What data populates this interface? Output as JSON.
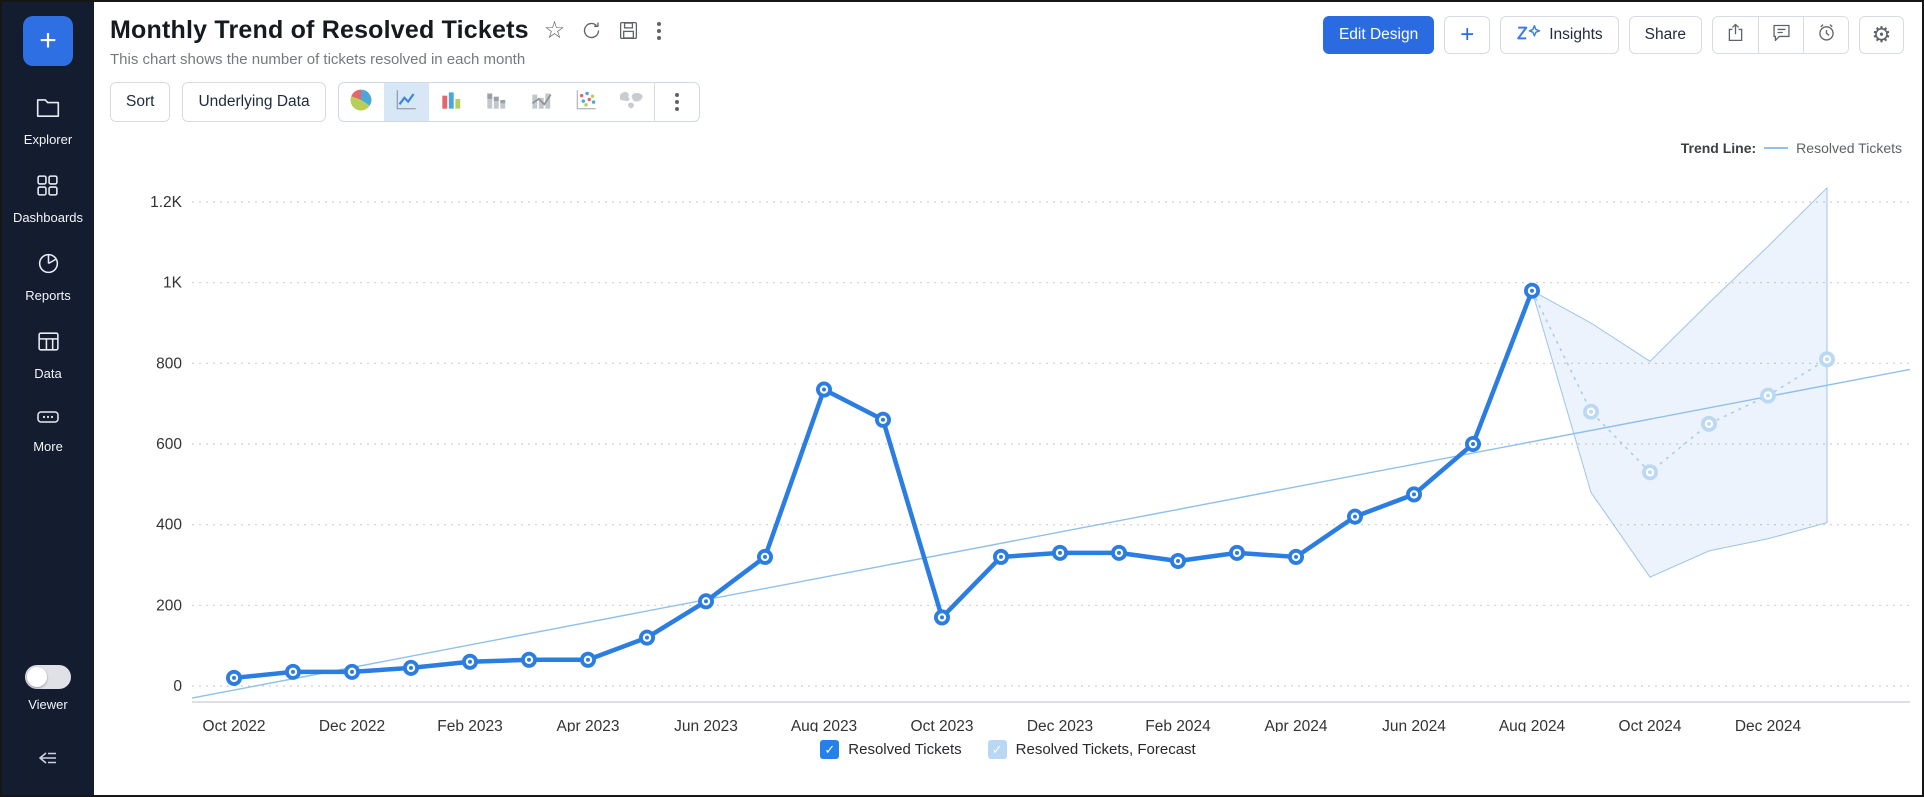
{
  "sidebar": {
    "plus_label": "+",
    "items": [
      {
        "label": "Explorer"
      },
      {
        "label": "Dashboards"
      },
      {
        "label": "Reports"
      },
      {
        "label": "Data"
      },
      {
        "label": "More"
      }
    ],
    "viewer_label": "Viewer"
  },
  "header": {
    "title": "Monthly Trend of Resolved Tickets",
    "subtitle": "This chart shows the number of tickets resolved in each month",
    "actions": {
      "edit_design": "Edit Design",
      "plus": "+",
      "insights": "Insights",
      "share": "Share"
    }
  },
  "toolbar": {
    "sort": "Sort",
    "underlying_data": "Underlying Data"
  },
  "chart_data": {
    "type": "line",
    "title": "Monthly Trend of Resolved Tickets",
    "ylim": [
      0,
      1200
    ],
    "y_tick_values": [
      0,
      200,
      400,
      600,
      800,
      1000,
      1200
    ],
    "y_tick_labels": [
      "0",
      "200",
      "400",
      "600",
      "800",
      "1K",
      "1.2K"
    ],
    "x_tick_labels": [
      "Oct 2022",
      "Dec 2022",
      "Feb 2023",
      "Apr 2023",
      "Jun 2023",
      "Aug 2023",
      "Oct 2023",
      "Dec 2023",
      "Feb 2024",
      "Apr 2024",
      "Jun 2024",
      "Aug 2024",
      "Oct 2024",
      "Dec 2024"
    ],
    "series": [
      {
        "name": "Resolved Tickets",
        "x": [
          "Oct 2022",
          "Nov 2022",
          "Dec 2022",
          "Jan 2023",
          "Feb 2023",
          "Mar 2023",
          "Apr 2023",
          "May 2023",
          "Jun 2023",
          "Jul 2023",
          "Aug 2023",
          "Sep 2023",
          "Oct 2023",
          "Nov 2023",
          "Dec 2023",
          "Jan 2024",
          "Feb 2024",
          "Mar 2024",
          "Apr 2024",
          "May 2024",
          "Jun 2024",
          "Jul 2024",
          "Aug 2024"
        ],
        "values": [
          20,
          35,
          35,
          45,
          60,
          65,
          65,
          120,
          210,
          320,
          735,
          660,
          170,
          320,
          330,
          330,
          310,
          330,
          320,
          420,
          475,
          600,
          980
        ]
      },
      {
        "name": "Resolved Tickets, Forecast",
        "x": [
          "Sep 2024",
          "Oct 2024",
          "Nov 2024",
          "Dec 2024",
          "Jan 2025"
        ],
        "values": [
          680,
          530,
          650,
          720,
          810
        ],
        "band_upper": [
          900,
          805,
          950,
          1090,
          1235
        ],
        "band_lower": [
          480,
          270,
          335,
          365,
          405
        ]
      }
    ],
    "trend_line": {
      "label": "Trend Line:",
      "series": "Resolved Tickets",
      "start_value": -30,
      "end_value": 785
    },
    "legend": [
      {
        "label": "Resolved Tickets",
        "checked": true,
        "checkbox_color": "#2680eb"
      },
      {
        "label": "Resolved Tickets, Forecast",
        "checked": true,
        "checkbox_color": "#b9d8f4"
      }
    ],
    "colors": {
      "line": "#2b7de1",
      "forecast_line": "#aacdf0",
      "forecast_marker": "#bcd9f4",
      "band_fill": "rgba(43,125,225,0.09)",
      "band_stroke": "#9cc4ec",
      "trend": "#8fc0ea",
      "grid": "#cfcfcf",
      "axis": "#c9ccd1",
      "tick_text": "#333333"
    },
    "legend_position": "bottom",
    "grid": true
  }
}
